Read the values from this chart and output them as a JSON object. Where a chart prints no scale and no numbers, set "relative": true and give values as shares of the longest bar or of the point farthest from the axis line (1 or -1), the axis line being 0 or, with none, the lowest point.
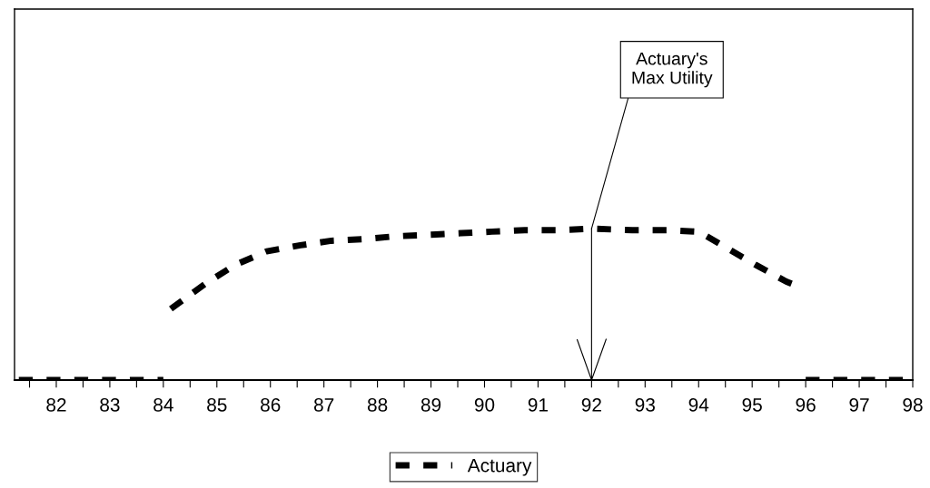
{
  "chart_data": {
    "type": "line",
    "relative": true,
    "xlim": [
      81.22,
      98
    ],
    "xticks": [
      {
        "value": 81.5,
        "label": null
      },
      82,
      {
        "value": 82.5,
        "label": null
      },
      83,
      {
        "value": 83.5,
        "label": null
      },
      84,
      {
        "value": 84.5,
        "label": null
      },
      85,
      {
        "value": 85.5,
        "label": null
      },
      86,
      {
        "value": 86.5,
        "label": null
      },
      87,
      {
        "value": 87.5,
        "label": null
      },
      88,
      {
        "value": 88.5,
        "label": null
      },
      89,
      {
        "value": 89.5,
        "label": null
      },
      90,
      {
        "value": 90.5,
        "label": null
      },
      91,
      {
        "value": 91.5,
        "label": null
      },
      92,
      {
        "value": 92.5,
        "label": null
      },
      93,
      {
        "value": 93.5,
        "label": null
      },
      94,
      {
        "value": 94.5,
        "label": null
      },
      95,
      {
        "value": 95.5,
        "label": null
      },
      96,
      {
        "value": 96.5,
        "label": null
      },
      97,
      {
        "value": 97.5,
        "label": null
      },
      98
    ],
    "x": [
      81.3,
      82,
      83,
      84,
      84.07,
      84.14,
      84.8,
      85.34,
      85.93,
      86.56,
      87.14,
      87.73,
      88.36,
      89.0,
      89.56,
      90.14,
      90.75,
      91.37,
      92.0,
      92.76,
      93.4,
      94.0,
      94.54,
      95.07,
      95.64,
      95.78,
      95.9,
      96,
      97,
      98
    ],
    "series": [
      {
        "name": "Actuary",
        "color": "#000000",
        "values": [
          0,
          0,
          0,
          0,
          null,
          0.47,
          0.64,
          0.76,
          0.85,
          0.89,
          0.92,
          0.93,
          0.95,
          0.96,
          0.97,
          0.98,
          0.99,
          0.99,
          1,
          0.99,
          0.99,
          0.98,
          0.87,
          0.76,
          0.65,
          0.63,
          null,
          0,
          0,
          0
        ]
      }
    ],
    "ref_lines": [
      {
        "axis": "x",
        "value": 92,
        "color": "#000000",
        "line_style": "solid"
      }
    ],
    "line_style": "dashed",
    "marker": "none",
    "grid": false,
    "legend": "bottom",
    "annotations": [
      {
        "text": "Actuary's\nMax Utility",
        "x": 92,
        "y": 1
      }
    ]
  }
}
